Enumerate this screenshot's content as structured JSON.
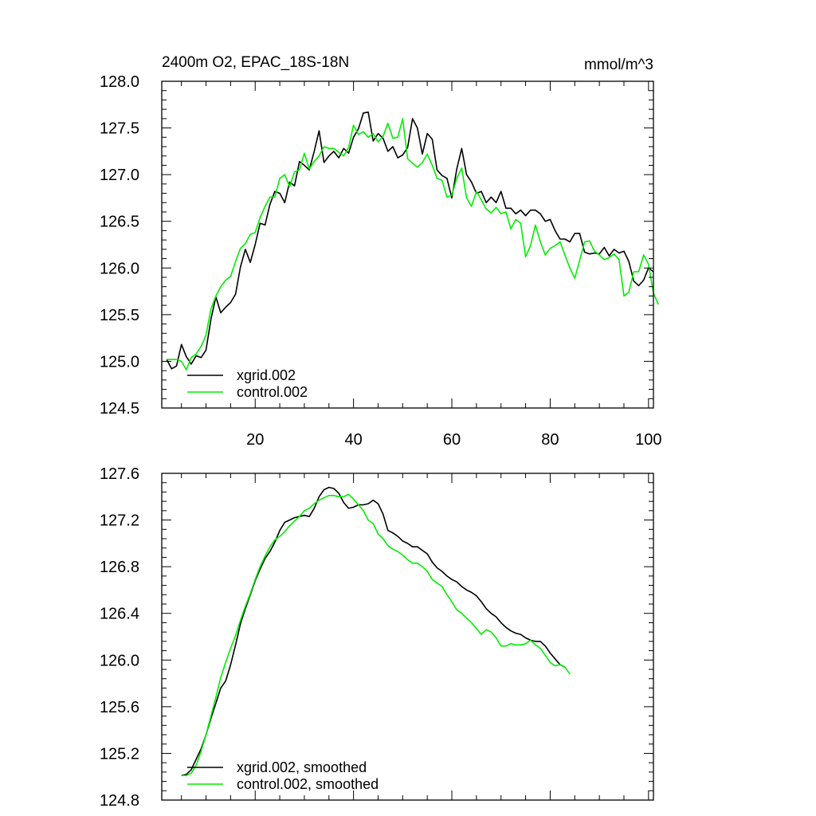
{
  "figure": {
    "title_left": "2400m O2, EPAC_18S-18N",
    "title_right": "mmol/m^3"
  },
  "colors": {
    "xgrid": "#000000",
    "control": "#00ee00",
    "axis": "#000000"
  },
  "chart_data": [
    {
      "type": "line",
      "title": "2400m O2, EPAC_18S-18N",
      "units": "mmol/m^3",
      "xlim": [
        1,
        101
      ],
      "ylim": [
        124.5,
        128.0
      ],
      "x_ticks": [
        20,
        40,
        60,
        80,
        100
      ],
      "x_tick_labels": [
        "20",
        "40",
        "60",
        "80",
        "100"
      ],
      "y_ticks": [
        124.5,
        125.0,
        125.5,
        126.0,
        126.5,
        127.0,
        127.5,
        128.0
      ],
      "y_tick_labels": [
        "124.5",
        "125.0",
        "125.5",
        "126.0",
        "126.5",
        "127.0",
        "127.5",
        "128.0"
      ],
      "legend_position": "bottom-left",
      "x_start": 2,
      "series": [
        {
          "name": "xgrid.002",
          "color": "#000000",
          "values": [
            125.02,
            124.92,
            124.95,
            125.18,
            125.05,
            124.97,
            125.06,
            125.04,
            125.12,
            125.45,
            125.69,
            125.52,
            125.58,
            125.63,
            125.72,
            126.01,
            126.2,
            126.06,
            126.25,
            126.48,
            126.46,
            126.68,
            126.82,
            126.8,
            126.7,
            126.92,
            126.88,
            127.14,
            127.1,
            127.05,
            127.25,
            127.47,
            127.13,
            127.2,
            127.25,
            127.18,
            127.28,
            127.23,
            127.4,
            127.49,
            127.66,
            127.67,
            127.36,
            127.44,
            127.39,
            127.25,
            127.3,
            127.18,
            127.21,
            127.29,
            127.6,
            127.5,
            127.22,
            127.44,
            127.38,
            127.05,
            126.99,
            126.96,
            126.75,
            127.06,
            127.28,
            127.0,
            126.92,
            126.8,
            126.82,
            126.7,
            126.76,
            126.7,
            126.82,
            126.64,
            126.64,
            126.58,
            126.62,
            126.56,
            126.62,
            126.62,
            126.58,
            126.5,
            126.52,
            126.4,
            126.31,
            126.31,
            126.28,
            126.37,
            126.37,
            126.17,
            126.15,
            126.16,
            126.15,
            126.22,
            126.13,
            126.2,
            126.16,
            126.18,
            126.07,
            125.86,
            125.81,
            125.87,
            126.0,
            125.96
          ]
        },
        {
          "name": "control.002",
          "color": "#00ee00",
          "values": [
            125.02,
            125.02,
            125.02,
            125.0,
            124.91,
            125.04,
            125.08,
            125.16,
            125.28,
            125.56,
            125.7,
            125.8,
            125.87,
            125.91,
            126.07,
            126.21,
            126.26,
            126.36,
            126.38,
            126.54,
            126.66,
            126.76,
            126.76,
            126.96,
            127.0,
            126.87,
            127.03,
            127.05,
            127.23,
            127.06,
            127.14,
            127.2,
            127.3,
            127.28,
            127.28,
            127.24,
            127.2,
            127.29,
            127.53,
            127.43,
            127.46,
            127.4,
            127.44,
            127.35,
            127.41,
            127.55,
            127.39,
            127.4,
            127.6,
            127.17,
            127.12,
            127.08,
            127.13,
            127.22,
            127.1,
            126.96,
            126.94,
            126.76,
            126.78,
            126.96,
            127.07,
            126.75,
            126.66,
            126.82,
            126.73,
            126.63,
            126.59,
            126.65,
            126.58,
            126.6,
            126.42,
            126.52,
            126.48,
            126.12,
            126.24,
            126.46,
            126.28,
            126.14,
            126.21,
            126.24,
            126.28,
            126.14,
            126.0,
            125.89,
            126.08,
            126.28,
            126.29,
            126.18,
            126.14,
            126.09,
            126.11,
            126.15,
            126.09,
            125.7,
            125.74,
            125.96,
            125.96,
            126.14,
            126.04,
            125.73,
            125.61
          ]
        }
      ]
    },
    {
      "type": "line",
      "xlim": [
        1,
        101
      ],
      "ylim": [
        124.8,
        127.6
      ],
      "x_ticks": [
        20,
        40,
        60,
        80,
        100
      ],
      "x_tick_labels": [],
      "y_ticks": [
        124.8,
        125.2,
        125.6,
        126.0,
        126.4,
        126.8,
        127.2,
        127.6
      ],
      "y_tick_labels": [
        "124.8",
        "125.2",
        "125.6",
        "126.0",
        "126.4",
        "126.8",
        "127.2",
        "127.6"
      ],
      "legend_position": "bottom-left",
      "x_start": 5,
      "series": [
        {
          "name": "xgrid.002, smoothed",
          "color": "#000000",
          "values": [
            125.01,
            125.02,
            125.06,
            125.15,
            125.24,
            125.36,
            125.5,
            125.63,
            125.76,
            125.82,
            125.96,
            126.13,
            126.31,
            126.44,
            126.56,
            126.68,
            126.78,
            126.87,
            126.93,
            127.01,
            127.11,
            127.18,
            127.2,
            127.22,
            127.23,
            127.24,
            127.23,
            127.3,
            127.4,
            127.46,
            127.48,
            127.47,
            127.43,
            127.35,
            127.3,
            127.31,
            127.33,
            127.33,
            127.34,
            127.37,
            127.34,
            127.25,
            127.11,
            127.09,
            127.06,
            127.02,
            127.0,
            126.97,
            126.97,
            126.94,
            126.91,
            126.84,
            126.79,
            126.76,
            126.72,
            126.69,
            126.67,
            126.63,
            126.6,
            126.58,
            126.55,
            126.5,
            126.44,
            126.4,
            126.37,
            126.32,
            126.28,
            126.25,
            126.23,
            126.22,
            126.19,
            126.17,
            126.16,
            126.16,
            126.12,
            126.06,
            126.01,
            125.96,
            125.94
          ]
        },
        {
          "name": "control.002, smoothed",
          "color": "#00ee00",
          "values": [
            125.01,
            125.01,
            125.03,
            125.1,
            125.22,
            125.36,
            125.52,
            125.68,
            125.85,
            125.98,
            126.1,
            126.21,
            126.34,
            126.46,
            126.57,
            126.69,
            126.8,
            126.89,
            126.97,
            127.03,
            127.06,
            127.1,
            127.15,
            127.19,
            127.23,
            127.28,
            127.3,
            127.34,
            127.37,
            127.39,
            127.41,
            127.41,
            127.4,
            127.4,
            127.42,
            127.38,
            127.33,
            127.28,
            127.2,
            127.17,
            127.08,
            127.04,
            126.98,
            126.95,
            126.93,
            126.9,
            126.86,
            126.83,
            126.83,
            126.8,
            126.76,
            126.69,
            126.66,
            126.63,
            126.56,
            126.5,
            126.43,
            126.4,
            126.36,
            126.32,
            126.27,
            126.22,
            126.26,
            126.24,
            126.19,
            126.12,
            126.12,
            126.14,
            126.13,
            126.13,
            126.14,
            126.17,
            126.13,
            126.1,
            126.04,
            125.98,
            125.95,
            125.96,
            125.94,
            125.88
          ]
        }
      ]
    }
  ]
}
